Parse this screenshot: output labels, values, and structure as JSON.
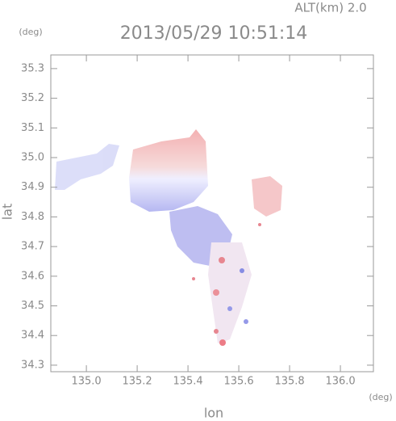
{
  "chart_data": {
    "type": "map",
    "title": "2013/05/29 10:51:14",
    "subtitle": "ALT(km) 2.0",
    "xlabel": "lon",
    "ylabel": "lat",
    "xunit": "(deg)",
    "yunit": "(deg)",
    "xlim": [
      134.86,
      136.13
    ],
    "ylim": [
      34.278,
      35.346
    ],
    "xticks": [
      {
        "value": 135,
        "label": "135.0"
      },
      135.2,
      135.4,
      135.6,
      135.8,
      {
        "value": 136,
        "label": "136.0"
      }
    ],
    "yticks": [
      34.3,
      34.4,
      34.5,
      34.6,
      34.7,
      34.8,
      34.9,
      {
        "value": 35,
        "label": "35.0"
      },
      35.1,
      35.2,
      35.3
    ]
  }
}
